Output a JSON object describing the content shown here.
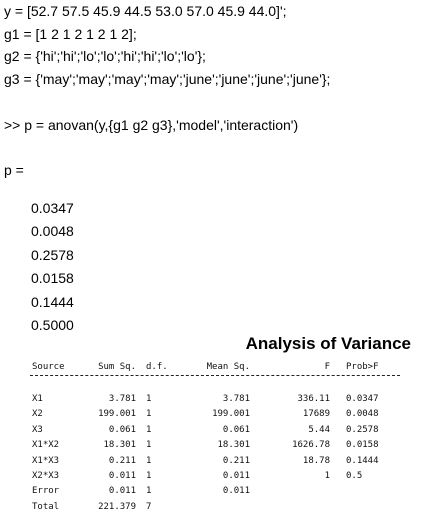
{
  "code_lines": [
    "y = [52.7 57.5 45.9 44.5 53.0 57.0 45.9 44.0]';",
    "g1 = [1 2 1 2 1 2 1 2];",
    "g2 = {'hi';'hi';'lo';'lo';'hi';'hi';'lo';'lo'};",
    "g3 = {'may';'may';'may';'may';'june';'june';'june';'june'};",
    ">> p = anovan(y,{g1 g2 g3},'model','interaction')",
    "p ="
  ],
  "p_values": [
    "0.0347",
    "0.0048",
    "0.2578",
    "0.0158",
    "0.1444",
    "0.5000"
  ],
  "anova": {
    "title": "Analysis of Variance",
    "headers": [
      "Source",
      "Sum Sq.",
      "d.f.",
      "Mean Sq.",
      "F",
      "Prob>F"
    ],
    "rows": [
      [
        "X1",
        "3.781",
        "1",
        "3.781",
        "336.11",
        "0.0347"
      ],
      [
        "X2",
        "199.001",
        "1",
        "199.001",
        "17689",
        "0.0048"
      ],
      [
        "X3",
        "0.061",
        "1",
        "0.061",
        "5.44",
        "0.2578"
      ],
      [
        "X1*X2",
        "18.301",
        "1",
        "18.301",
        "1626.78",
        "0.0158"
      ],
      [
        "X1*X3",
        "0.211",
        "1",
        "0.211",
        "18.78",
        "0.1444"
      ],
      [
        "X2*X3",
        "0.011",
        "1",
        "0.011",
        "1",
        "0.5"
      ],
      [
        "Error",
        "0.011",
        "1",
        "0.011",
        "",
        ""
      ],
      [
        "Total",
        "221.379",
        "7",
        "",
        "",
        ""
      ]
    ]
  }
}
